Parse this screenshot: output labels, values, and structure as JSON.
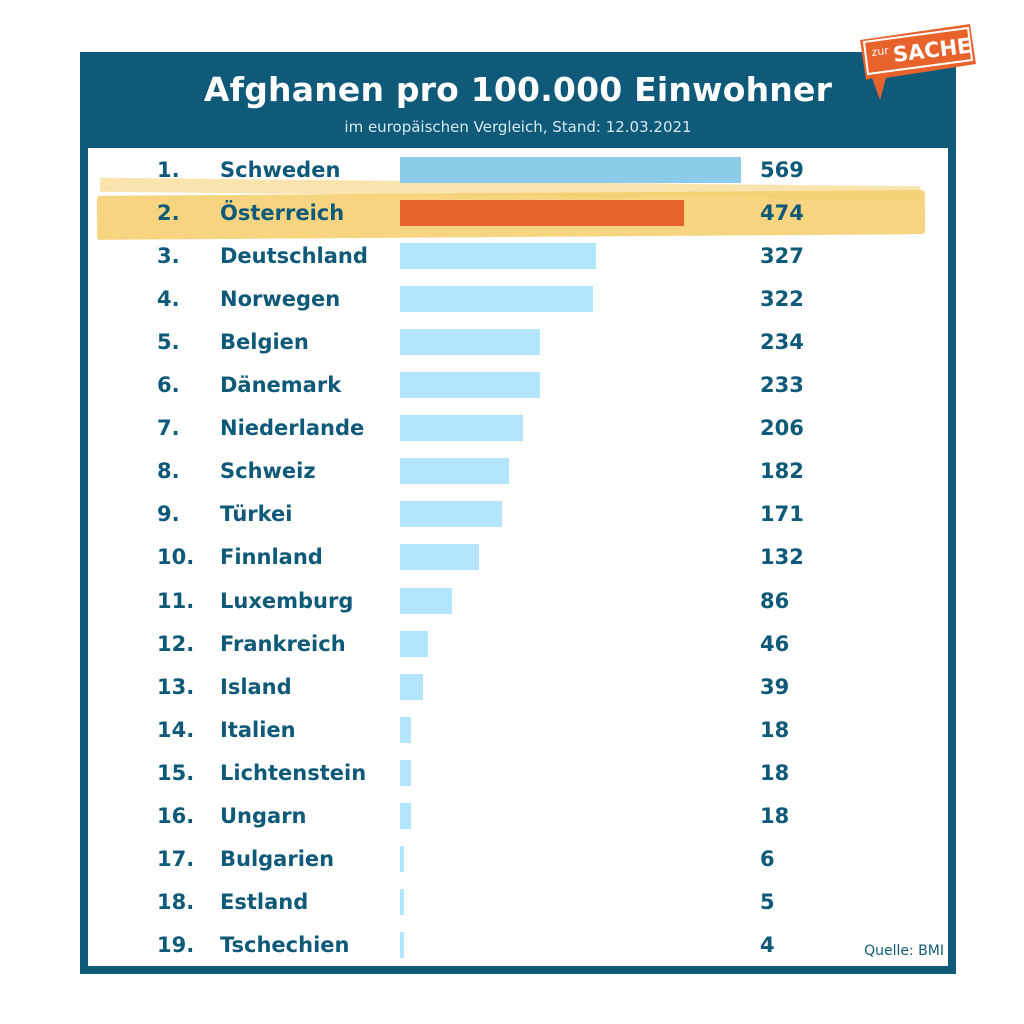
{
  "header": {
    "title": "Afghanen pro 100.000 Einwohner",
    "subtitle": "im europäischen Vergleich, Stand: 12.03.2021"
  },
  "source": "Quelle: BMI",
  "logo": {
    "small": "zur",
    "big": "SACHE",
    "color": "#e8622c"
  },
  "colors": {
    "frame": "#0e5a78",
    "bar": "#b3e5fc",
    "top_bar": "#8ccbea",
    "highlight_bar": "#e8622c",
    "highlight_band": "#f5cd6a"
  },
  "chart_data": {
    "type": "bar",
    "orientation": "horizontal",
    "title": "Afghanen pro 100.000 Einwohner",
    "subtitle": "im europäischen Vergleich, Stand: 12.03.2021",
    "ranks": [
      "1.",
      "2.",
      "3.",
      "4.",
      "5.",
      "6.",
      "7.",
      "8.",
      "9.",
      "10.",
      "11.",
      "12.",
      "13.",
      "14.",
      "15.",
      "16.",
      "17.",
      "18.",
      "19."
    ],
    "categories": [
      "Schweden",
      "Österreich",
      "Deutschland",
      "Norwegen",
      "Belgien",
      "Dänemark",
      "Niederlande",
      "Schweiz",
      "Türkei",
      "Finnland",
      "Luxemburg",
      "Frankreich",
      "Island",
      "Italien",
      "Lichtenstein",
      "Ungarn",
      "Bulgarien",
      "Estland",
      "Tschechien"
    ],
    "values": [
      569,
      474,
      327,
      322,
      234,
      233,
      206,
      182,
      171,
      132,
      86,
      46,
      39,
      18,
      18,
      18,
      6,
      5,
      4
    ],
    "value_labels": [
      "569",
      "474",
      "327",
      "322",
      "234",
      "233",
      "206",
      "182",
      "171",
      "132",
      "86",
      "46",
      "39",
      "18",
      "18",
      "18",
      "6",
      "5",
      "4"
    ],
    "highlight_index": 1,
    "xlim": [
      0,
      569
    ]
  }
}
